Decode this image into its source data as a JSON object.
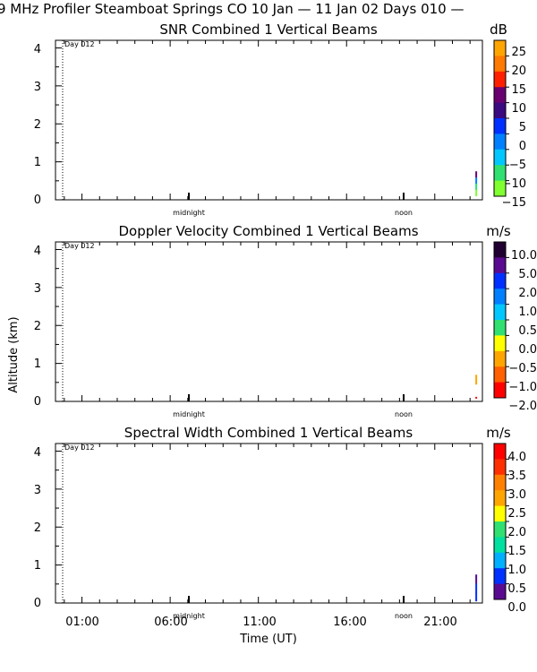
{
  "header": "9 MHz Profiler  Steamboat Springs CO  10 Jan — 11 Jan 02 Days 010 —",
  "ylabel": "Altitude (km)",
  "xlabel": "Time (UT)",
  "x_ticks": [
    "01:00",
    "06:00",
    "11:00",
    "16:00",
    "21:00"
  ],
  "panel_markers": {
    "day": "Day 012",
    "midnight": "midnight",
    "noon": "noon"
  },
  "chart_data": [
    {
      "type": "heatmap",
      "title": "SNR Combined 1 Vertical Beams",
      "unit": "dB",
      "ylim": [
        0,
        4.2
      ],
      "y_ticks": [
        "0",
        "1",
        "2",
        "3",
        "4"
      ],
      "colorbar": {
        "labels": [
          "25",
          "20",
          "15",
          "10",
          "5",
          "0",
          "−5",
          "−10",
          "−15"
        ],
        "colors": [
          "#ffa500",
          "#ff7a00",
          "#ff2000",
          "#6a0070",
          "#3a0a80",
          "#0030ff",
          "#0080ff",
          "#00c8ff",
          "#30e070",
          "#80ff30"
        ]
      },
      "data_traces": [
        {
          "time_hr": 23.3,
          "alt_from": 0.1,
          "alt_to": 0.75,
          "colors": [
            "#6a0070",
            "#0080ff",
            "#30e070",
            "#80ff30"
          ]
        }
      ]
    },
    {
      "type": "heatmap",
      "title": "Doppler Velocity Combined 1 Vertical Beams",
      "unit": "m/s",
      "ylim": [
        0,
        4.2
      ],
      "y_ticks": [
        "0",
        "1",
        "2",
        "3",
        "4"
      ],
      "colorbar": {
        "labels": [
          "10.0",
          "5.0",
          "2.0",
          "1.0",
          "0.5",
          "0.0",
          "−0.5",
          "−1.0",
          "−2.0"
        ],
        "colors": [
          "#200030",
          "#5a0a90",
          "#0030ff",
          "#0080ff",
          "#00c8ff",
          "#30e070",
          "#ffff00",
          "#ffa500",
          "#ff6000",
          "#ff0000"
        ]
      },
      "data_traces": [
        {
          "time_hr": 23.3,
          "alt_from": 0.45,
          "alt_to": 0.7,
          "colors": [
            "#ffa500",
            "#ffa500"
          ]
        },
        {
          "time_hr": 23.3,
          "alt_from": 0.08,
          "alt_to": 0.12,
          "colors": [
            "#ff0000"
          ]
        }
      ]
    },
    {
      "type": "heatmap",
      "title": "Spectral Width Combined 1 Vertical Beams",
      "unit": "m/s",
      "ylim": [
        0,
        4.2
      ],
      "y_ticks": [
        "0",
        "1",
        "2",
        "3",
        "4"
      ],
      "colorbar": {
        "labels": [
          "4.0",
          "3.5",
          "3.0",
          "2.5",
          "2.0",
          "1.5",
          "1.0",
          "0.5",
          "0.0"
        ],
        "colors": [
          "#ff0000",
          "#ff3000",
          "#ff8000",
          "#ffa500",
          "#ffff00",
          "#30e070",
          "#00e0a0",
          "#00b0ff",
          "#0030ff",
          "#5a0a90"
        ]
      },
      "data_traces": [
        {
          "time_hr": 23.3,
          "alt_from": 0.05,
          "alt_to": 0.75,
          "colors": [
            "#5a0a90",
            "#0030ff",
            "#0030ff"
          ]
        }
      ]
    }
  ]
}
